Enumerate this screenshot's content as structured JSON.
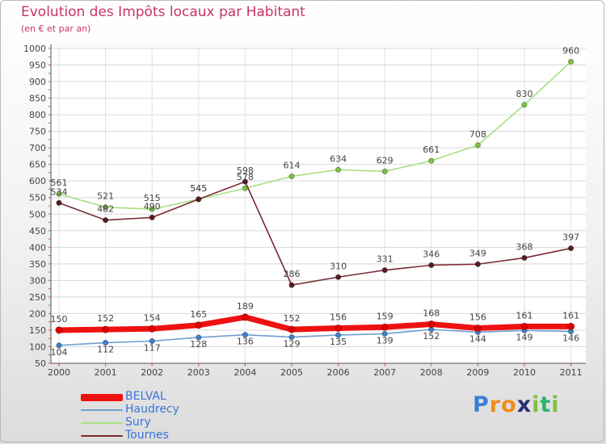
{
  "header": {
    "title": "Evolution des Impôts locaux par Habitant",
    "subtitle": "(en € et par an)"
  },
  "logo": {
    "text": "Proxiti",
    "letters": [
      "P",
      "r",
      "o",
      "x",
      "i",
      "t",
      "i"
    ],
    "colors": [
      "#3a7fd5",
      "#f08c1a",
      "#f08c1a",
      "#2d2d6e",
      "#7ec040",
      "#2fb36a",
      "#7ec040"
    ]
  },
  "chart_data": {
    "type": "line",
    "title": "Evolution des Impôts locaux par Habitant",
    "subtitle": "(en € et par an)",
    "xlabel": "",
    "ylabel": "",
    "categories": [
      "2000",
      "2001",
      "2002",
      "2003",
      "2004",
      "2005",
      "2006",
      "2007",
      "2008",
      "2009",
      "2010",
      "2011"
    ],
    "ylim": [
      50,
      1000
    ],
    "yticks": [
      50,
      100,
      150,
      200,
      250,
      300,
      350,
      400,
      450,
      500,
      550,
      600,
      650,
      700,
      750,
      800,
      850,
      900,
      950,
      1000
    ],
    "legend_position": "bottom-left",
    "series": [
      {
        "name": "Sury",
        "color": "#a8df80",
        "marker": "#7ac143",
        "values": [
          561,
          521,
          515,
          545,
          578,
          614,
          634,
          629,
          661,
          708,
          830,
          960
        ],
        "labels": [
          "561",
          "521",
          "515",
          "545",
          "578",
          "614",
          "634",
          "629",
          "661",
          "708",
          "830",
          "960"
        ]
      },
      {
        "name": "Tournes",
        "color": "#7a2a34",
        "marker": "#5a1a22",
        "values": [
          534,
          482,
          490,
          545,
          598,
          286,
          310,
          331,
          346,
          349,
          368,
          397
        ],
        "labels": [
          "534",
          "482",
          "490",
          "545",
          "598",
          "286",
          "310",
          "331",
          "346",
          "349",
          "368",
          "397"
        ]
      },
      {
        "name": "Haudrecy",
        "color": "#6f9fd0",
        "marker": "#3f7fc8",
        "values": [
          104,
          112,
          117,
          128,
          136,
          129,
          135,
          139,
          152,
          144,
          149,
          146
        ],
        "labels": [
          "104",
          "112",
          "117",
          "128",
          "136",
          "129",
          "135",
          "139",
          "152",
          "144",
          "149",
          "146"
        ]
      },
      {
        "name": "BELVAL",
        "color": "#ee1111",
        "marker": "#dd0000",
        "values": [
          150,
          152,
          154,
          165,
          189,
          152,
          156,
          159,
          168,
          156,
          161,
          161
        ],
        "labels": [
          "150",
          "152",
          "154",
          "165",
          "189",
          "152",
          "156",
          "159",
          "168",
          "156",
          "161",
          "161"
        ]
      }
    ],
    "legend": [
      "BELVAL",
      "Haudrecy",
      "Sury",
      "Tournes"
    ]
  }
}
